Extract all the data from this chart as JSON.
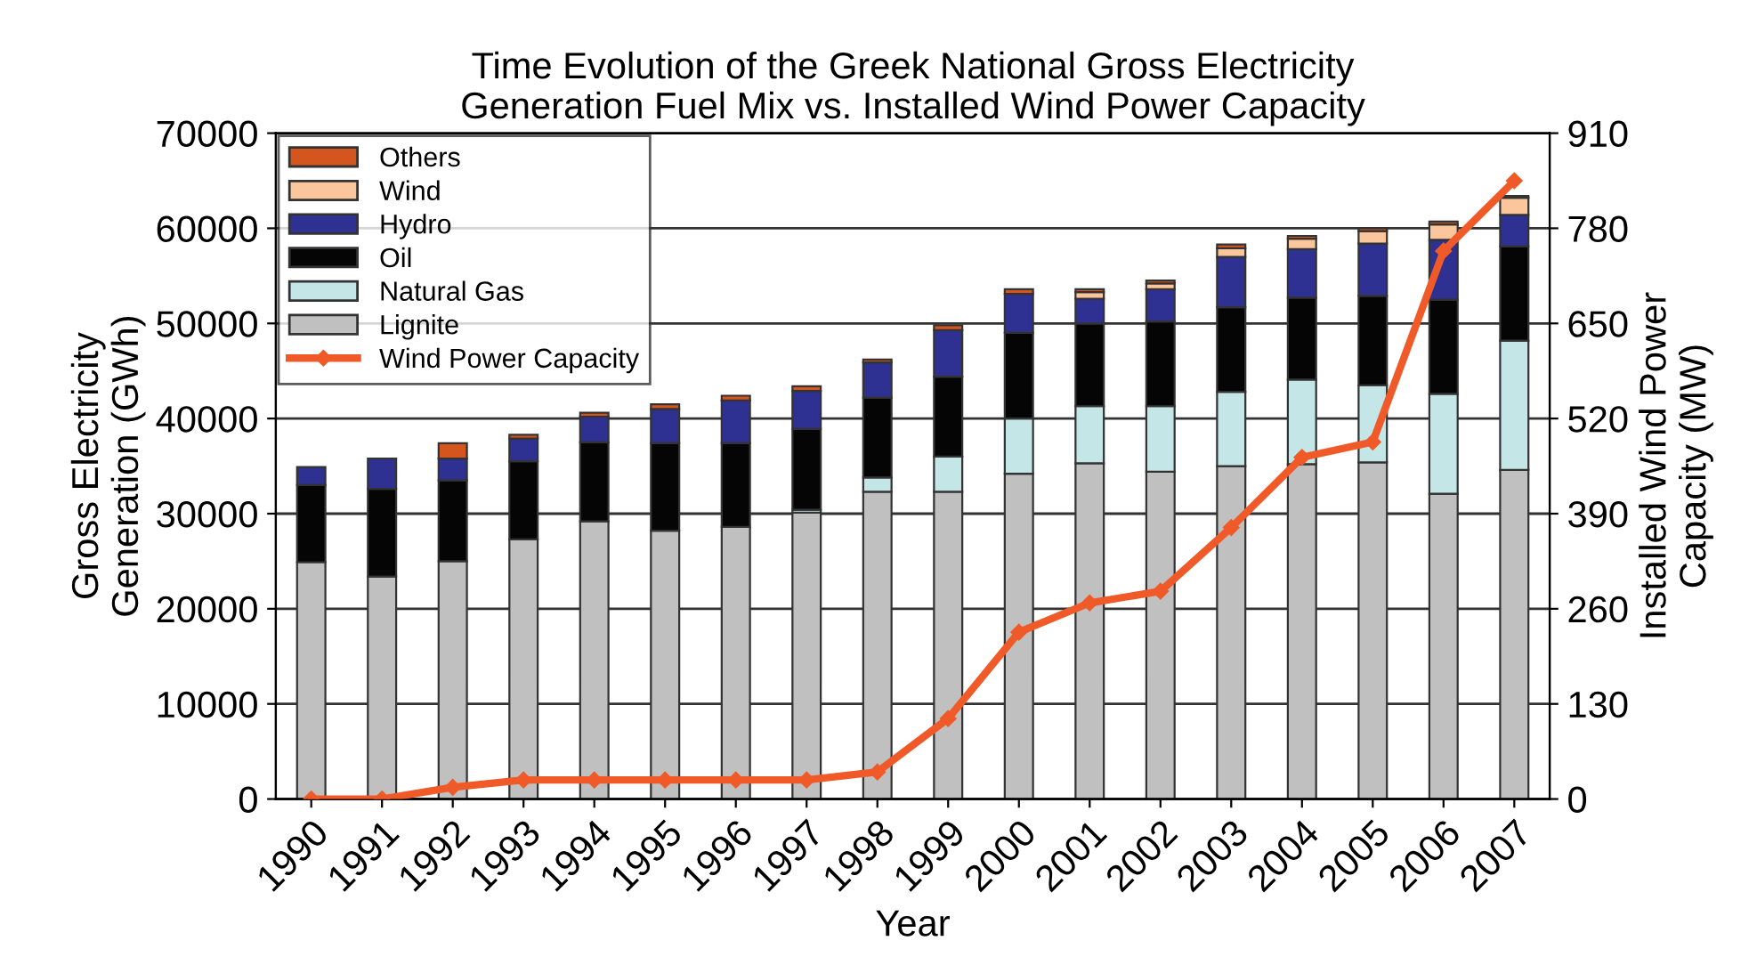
{
  "chart_data": {
    "type": "bar",
    "title": "Time Evolution of the Greek National Gross Electricity\nGeneration Fuel Mix vs. Installed Wind Power Capacity",
    "xlabel": "Year",
    "ylabel": "Gross Electricity\nGeneration (GWh)",
    "y2label": "Installed Wind Power\nCapacity (MW)",
    "categories": [
      "1990",
      "1991",
      "1992",
      "1993",
      "1994",
      "1995",
      "1996",
      "1997",
      "1998",
      "1999",
      "2000",
      "2001",
      "2002",
      "2003",
      "2004",
      "2005",
      "2006",
      "2007"
    ],
    "stacked": true,
    "series": [
      {
        "name": "Lignite",
        "color": "#c0c0c0",
        "values": [
          24900,
          23400,
          25000,
          27300,
          29200,
          28200,
          28600,
          30100,
          32300,
          32300,
          34200,
          35300,
          34400,
          35000,
          35200,
          35400,
          32100,
          34600
        ]
      },
      {
        "name": "Natural Gas",
        "color": "#c4e6e6",
        "values": [
          null,
          null,
          null,
          null,
          null,
          null,
          null,
          300,
          1500,
          3700,
          5800,
          6000,
          6900,
          7800,
          8900,
          8100,
          10500,
          13600
        ]
      },
      {
        "name": "Oil",
        "color": "#050505",
        "values": [
          8100,
          9200,
          8500,
          8200,
          8300,
          9200,
          8800,
          8500,
          8400,
          8400,
          9000,
          8700,
          8900,
          8900,
          8600,
          9400,
          9900,
          9900
        ]
      },
      {
        "name": "Hydro",
        "color": "#2e3192",
        "values": [
          1900,
          3200,
          2300,
          2400,
          2700,
          3600,
          4500,
          4000,
          3700,
          4900,
          4100,
          2600,
          3400,
          5300,
          5100,
          5500,
          6300,
          3300
        ]
      },
      {
        "name": "Wind",
        "color": "#fcc69c",
        "values": [
          null,
          null,
          null,
          null,
          null,
          null,
          null,
          null,
          null,
          null,
          null,
          700,
          600,
          900,
          1100,
          1300,
          1600,
          1800
        ]
      },
      {
        "name": "Others",
        "color": "#d4561e",
        "values": [
          null,
          null,
          1600,
          400,
          400,
          500,
          500,
          500,
          300,
          500,
          500,
          300,
          300,
          400,
          300,
          300,
          300,
          200
        ]
      },
      {
        "name": "Wind Power Capacity",
        "type": "line",
        "axis": "y2",
        "color": "#f05a28",
        "marker": "diamond",
        "values": [
          0,
          0,
          16,
          26,
          26,
          26,
          26,
          26,
          37,
          110,
          228,
          268,
          284,
          371,
          467,
          488,
          749,
          845
        ]
      }
    ],
    "ylim": [
      0,
      70000
    ],
    "yticks": [
      0,
      10000,
      20000,
      30000,
      40000,
      50000,
      60000,
      70000
    ],
    "y2lim": [
      0,
      910
    ],
    "y2ticks": [
      0,
      130,
      260,
      390,
      520,
      650,
      780,
      910
    ],
    "grid": "y",
    "legend": "top left"
  }
}
